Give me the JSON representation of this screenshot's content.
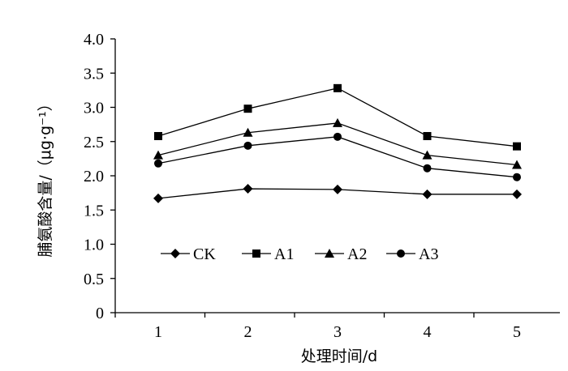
{
  "chart_data": {
    "type": "line",
    "x": [
      1,
      2,
      3,
      4,
      5
    ],
    "xlabel": "处理时间/d",
    "ylabel": "脯氨酸含量/（μg·g⁻¹）",
    "ylim": [
      0,
      4
    ],
    "yticks": [
      "0",
      "0.5",
      "1.0",
      "1.5",
      "2.0",
      "2.5",
      "3.0",
      "3.5",
      "4.0"
    ],
    "xticks": [
      "1",
      "2",
      "3",
      "4",
      "5"
    ],
    "grid": false,
    "legend_position": "lower-left inside",
    "series": [
      {
        "name": "CK",
        "marker": "diamond",
        "values": [
          1.67,
          1.81,
          1.8,
          1.73,
          1.73
        ]
      },
      {
        "name": "A1",
        "marker": "square",
        "values": [
          2.58,
          2.98,
          3.28,
          2.58,
          2.43
        ]
      },
      {
        "name": "A2",
        "marker": "triangle",
        "values": [
          2.3,
          2.63,
          2.77,
          2.3,
          2.16
        ]
      },
      {
        "name": "A3",
        "marker": "circle",
        "values": [
          2.18,
          2.44,
          2.57,
          2.11,
          1.98
        ]
      }
    ],
    "color": "#000000"
  }
}
